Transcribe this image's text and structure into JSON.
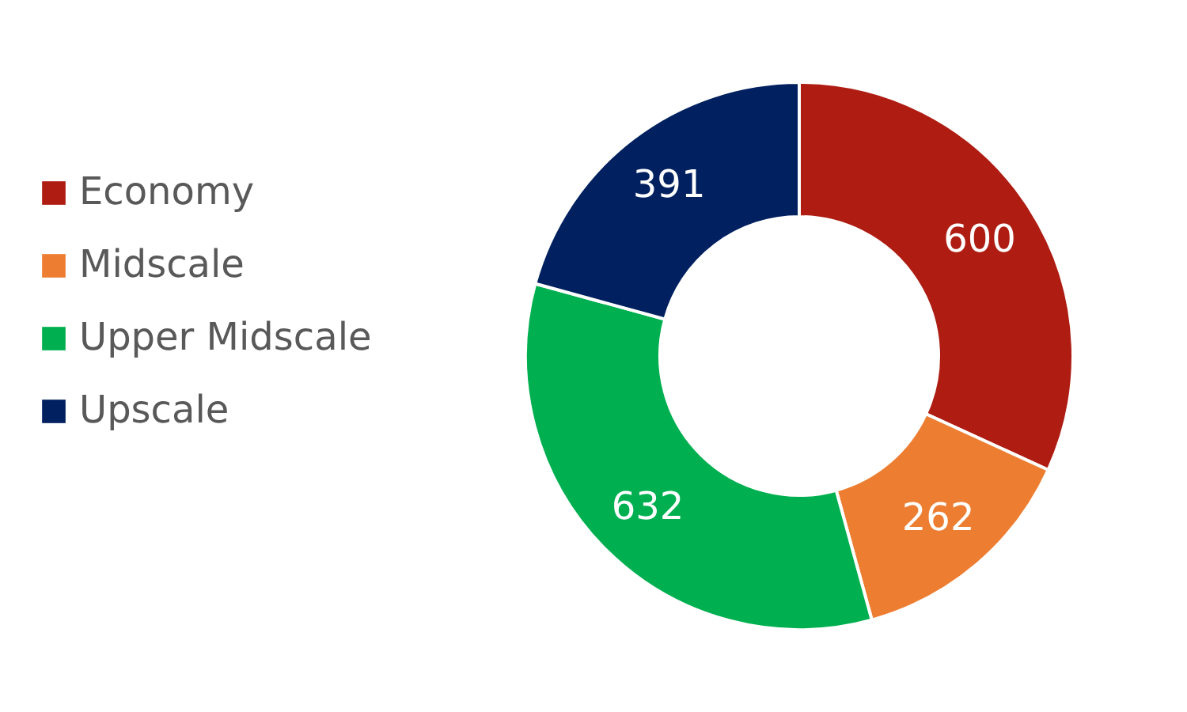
{
  "chart_data": {
    "type": "donut",
    "categories": [
      "Economy",
      "Midscale",
      "Upper Midscale",
      "Upscale"
    ],
    "values": [
      600,
      262,
      632,
      391
    ],
    "colors": [
      "#ae1c12",
      "#ed7d31",
      "#00b050",
      "#002060"
    ],
    "data_labels": true,
    "legend": "left"
  }
}
